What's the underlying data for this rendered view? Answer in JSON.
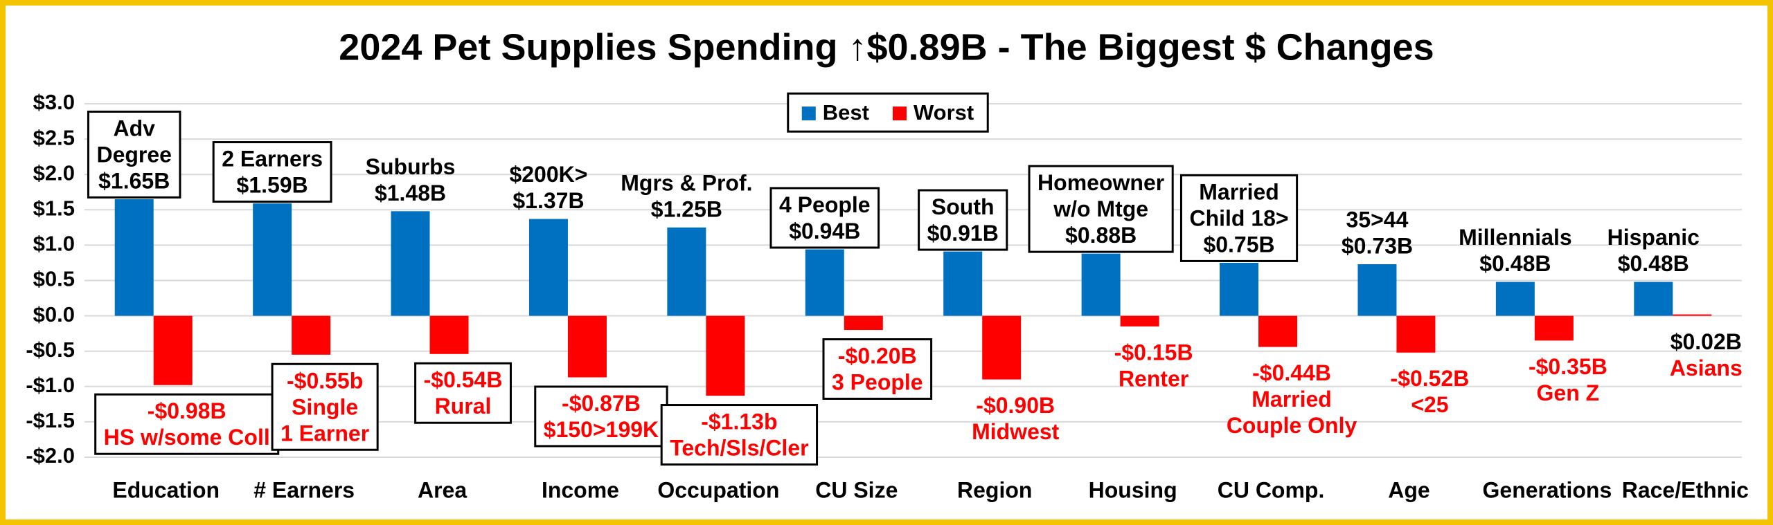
{
  "chart_data": {
    "type": "bar",
    "title": "2024 Pet Supplies Spending ↑$0.89B - The Biggest $ Changes",
    "categories": [
      "Education",
      "# Earners",
      "Area",
      "Income",
      "Occupation",
      "CU Size",
      "Region",
      "Housing",
      "CU Comp.",
      "Age",
      "Generations",
      "Race/Ethnic"
    ],
    "series": [
      {
        "name": "Best",
        "color": "#0070c0",
        "values": [
          1.65,
          1.59,
          1.48,
          1.37,
          1.25,
          0.94,
          0.91,
          0.88,
          0.75,
          0.73,
          0.48,
          0.48
        ],
        "value_labels": [
          "$1.65B",
          "$1.59B",
          "$1.48B",
          "$1.37B",
          "$1.25B",
          "$0.94B",
          "$0.91B",
          "$0.88B",
          "$0.75B",
          "$0.73B",
          "$0.48B",
          "$0.48B"
        ],
        "point_labels": [
          [
            "Adv",
            "Degree"
          ],
          [
            "2 Earners"
          ],
          [
            "Suburbs"
          ],
          [
            "$200K>"
          ],
          [
            "Mgrs & Prof."
          ],
          [
            "4 People"
          ],
          [
            "South"
          ],
          [
            "Homeowner",
            "w/o Mtge"
          ],
          [
            "Married",
            "Child 18>"
          ],
          [
            "35>44"
          ],
          [
            "Millennials"
          ],
          [
            "Hispanic"
          ]
        ],
        "label_boxed": [
          true,
          true,
          false,
          false,
          false,
          true,
          true,
          true,
          true,
          false,
          false,
          false
        ]
      },
      {
        "name": "Worst",
        "color": "#ff0000",
        "values": [
          -0.98,
          -0.55,
          -0.54,
          -0.87,
          -1.13,
          -0.2,
          -0.9,
          -0.15,
          -0.44,
          -0.52,
          -0.35,
          0.02
        ],
        "value_labels": [
          "-$0.98B",
          "-$0.55b",
          "-$0.54B",
          "-$0.87B",
          "-$1.13b",
          "-$0.20B",
          "-$0.90B",
          "-$0.15B",
          "-$0.44B",
          "-$0.52B",
          "-$0.35B",
          "$0.02B"
        ],
        "point_labels": [
          [
            "HS w/some Coll"
          ],
          [
            "Single",
            "1 Earner"
          ],
          [
            "Rural"
          ],
          [
            "$150>199K"
          ],
          [
            "Tech/Sls/Cler"
          ],
          [
            "3 People"
          ],
          [
            "Midwest"
          ],
          [
            "Renter"
          ],
          [
            "Married",
            "Couple Only"
          ],
          [
            "<25"
          ],
          [
            "Gen Z"
          ],
          [
            "Asians"
          ]
        ],
        "label_boxed": [
          true,
          true,
          true,
          true,
          true,
          true,
          false,
          false,
          false,
          false,
          false,
          false
        ]
      }
    ],
    "ylim": [
      -2.0,
      3.0
    ],
    "yticks": [
      {
        "value": -2.0,
        "label": "-$2.0"
      },
      {
        "value": -1.5,
        "label": "-$1.5"
      },
      {
        "value": -1.0,
        "label": "-$1.0"
      },
      {
        "value": -0.5,
        "label": "-$0.5"
      },
      {
        "value": 0.0,
        "label": "$0.0"
      },
      {
        "value": 0.5,
        "label": "$0.5"
      },
      {
        "value": 1.0,
        "label": "$1.0"
      },
      {
        "value": 1.5,
        "label": "$1.5"
      },
      {
        "value": 2.0,
        "label": "$2.0"
      },
      {
        "value": 2.5,
        "label": "$2.5"
      },
      {
        "value": 3.0,
        "label": "$3.0"
      }
    ],
    "grid": true,
    "legend_position": "top-center"
  }
}
